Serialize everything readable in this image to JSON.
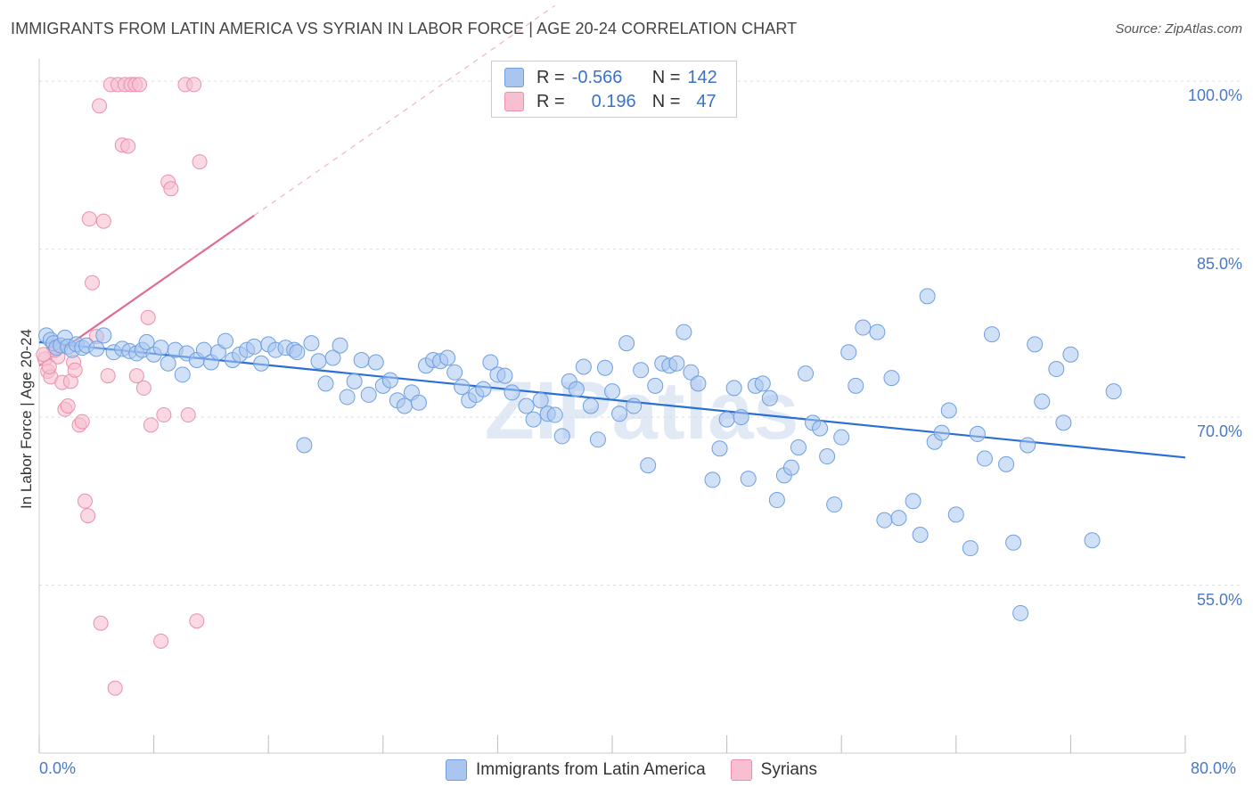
{
  "title": "IMMIGRANTS FROM LATIN AMERICA VS SYRIAN IN LABOR FORCE | AGE 20-24 CORRELATION CHART",
  "source": "Source: ZipAtlas.com",
  "watermark": "ZIPatlas",
  "colors": {
    "blue_fill": "#aac6f0",
    "blue_stroke": "#6f9fe0",
    "blue_line": "#2a6fd6",
    "pink_fill": "#f7bfd0",
    "pink_stroke": "#ec8fad",
    "pink_line": "#e06a93",
    "tick_text": "#4a78c8",
    "grid": "#dddddd"
  },
  "correlation_box": {
    "rows": [
      {
        "r_label": "R =",
        "r_value": "-0.566",
        "n_label": "N =",
        "n_value": "142"
      },
      {
        "r_label": "R =",
        "r_value": "0.196",
        "n_label": "N =",
        "n_value": "47"
      }
    ]
  },
  "chart_data": {
    "type": "scatter",
    "title": "IMMIGRANTS FROM LATIN AMERICA VS SYRIAN IN LABOR FORCE | AGE 20-24 CORRELATION CHART",
    "xlabel": "",
    "ylabel": "In Labor Force | Age 20-24",
    "xlim": [
      0,
      80
    ],
    "ylim": [
      40,
      102
    ],
    "x_tick_labels": [
      "0.0%",
      "80.0%"
    ],
    "y_tick_labels": [
      "100.0%",
      "85.0%",
      "70.0%",
      "55.0%"
    ],
    "y_ticks": [
      100,
      85,
      70,
      55
    ],
    "legend_position": "bottom-center",
    "grid": true,
    "series": [
      {
        "name": "Immigrants from Latin America",
        "color": "#aac6f0",
        "trend": {
          "x": [
            0,
            80
          ],
          "y": [
            76.7,
            66.4
          ]
        },
        "points": [
          [
            0.5,
            77.3
          ],
          [
            0.8,
            76.9
          ],
          [
            1.0,
            76.6
          ],
          [
            1.2,
            76.2
          ],
          [
            1.5,
            76.4
          ],
          [
            1.8,
            77.1
          ],
          [
            2.0,
            76.3
          ],
          [
            2.3,
            76.0
          ],
          [
            2.6,
            76.5
          ],
          [
            3.0,
            76.2
          ],
          [
            3.3,
            76.4
          ],
          [
            4.0,
            76.1
          ],
          [
            4.5,
            77.3
          ],
          [
            5.2,
            75.8
          ],
          [
            5.8,
            76.1
          ],
          [
            6.3,
            75.9
          ],
          [
            6.8,
            75.7
          ],
          [
            7.2,
            76.0
          ],
          [
            7.5,
            76.7
          ],
          [
            8.0,
            75.6
          ],
          [
            8.5,
            76.2
          ],
          [
            9.0,
            74.8
          ],
          [
            9.5,
            76.0
          ],
          [
            10.0,
            73.8
          ],
          [
            10.3,
            75.7
          ],
          [
            11.0,
            75.1
          ],
          [
            11.5,
            76.0
          ],
          [
            12.0,
            74.9
          ],
          [
            12.5,
            75.8
          ],
          [
            13.0,
            76.8
          ],
          [
            13.5,
            75.1
          ],
          [
            14.0,
            75.6
          ],
          [
            14.5,
            76.0
          ],
          [
            15.0,
            76.3
          ],
          [
            15.5,
            74.8
          ],
          [
            16.0,
            76.5
          ],
          [
            16.5,
            76.0
          ],
          [
            17.2,
            76.2
          ],
          [
            17.8,
            76.0
          ],
          [
            18.0,
            75.8
          ],
          [
            18.5,
            67.5
          ],
          [
            19.0,
            76.6
          ],
          [
            19.5,
            75.0
          ],
          [
            20.0,
            73.0
          ],
          [
            20.5,
            75.3
          ],
          [
            21.0,
            76.4
          ],
          [
            21.5,
            71.8
          ],
          [
            22.0,
            73.2
          ],
          [
            22.5,
            75.1
          ],
          [
            23.0,
            72.0
          ],
          [
            23.5,
            74.9
          ],
          [
            24.0,
            72.8
          ],
          [
            24.5,
            73.3
          ],
          [
            25.0,
            71.5
          ],
          [
            25.5,
            71.0
          ],
          [
            26.0,
            72.2
          ],
          [
            26.5,
            71.3
          ],
          [
            27.0,
            74.6
          ],
          [
            27.5,
            75.1
          ],
          [
            28.0,
            75.0
          ],
          [
            28.5,
            75.3
          ],
          [
            29.0,
            74.0
          ],
          [
            29.5,
            72.7
          ],
          [
            30.0,
            71.5
          ],
          [
            30.5,
            72.0
          ],
          [
            31.0,
            72.5
          ],
          [
            31.5,
            74.9
          ],
          [
            32.0,
            73.8
          ],
          [
            32.5,
            73.7
          ],
          [
            33.0,
            72.2
          ],
          [
            34.0,
            71.0
          ],
          [
            34.5,
            69.8
          ],
          [
            35.0,
            71.5
          ],
          [
            35.5,
            70.3
          ],
          [
            36.0,
            70.2
          ],
          [
            36.5,
            68.3
          ],
          [
            37.0,
            73.2
          ],
          [
            37.5,
            72.5
          ],
          [
            38.0,
            74.5
          ],
          [
            38.5,
            71.0
          ],
          [
            39.0,
            68.0
          ],
          [
            39.5,
            74.4
          ],
          [
            40.0,
            72.3
          ],
          [
            40.5,
            70.3
          ],
          [
            41.0,
            76.6
          ],
          [
            41.5,
            71.0
          ],
          [
            42.0,
            74.2
          ],
          [
            42.5,
            65.7
          ],
          [
            43.0,
            72.8
          ],
          [
            43.5,
            74.8
          ],
          [
            44.0,
            74.6
          ],
          [
            44.5,
            74.8
          ],
          [
            45.0,
            77.6
          ],
          [
            45.5,
            74.0
          ],
          [
            46.0,
            73.0
          ],
          [
            47.0,
            64.4
          ],
          [
            47.5,
            67.2
          ],
          [
            48.0,
            69.8
          ],
          [
            48.5,
            72.6
          ],
          [
            49.0,
            70.0
          ],
          [
            49.5,
            64.5
          ],
          [
            50.0,
            72.8
          ],
          [
            50.5,
            73.0
          ],
          [
            51.0,
            71.7
          ],
          [
            51.5,
            62.6
          ],
          [
            52.0,
            64.8
          ],
          [
            52.5,
            65.5
          ],
          [
            53.0,
            67.3
          ],
          [
            53.5,
            73.9
          ],
          [
            54.0,
            69.5
          ],
          [
            54.5,
            69.0
          ],
          [
            55.0,
            66.5
          ],
          [
            55.5,
            62.2
          ],
          [
            56.0,
            68.2
          ],
          [
            56.5,
            75.8
          ],
          [
            57.0,
            72.8
          ],
          [
            57.5,
            78.0
          ],
          [
            58.5,
            77.6
          ],
          [
            59.0,
            60.8
          ],
          [
            59.5,
            73.5
          ],
          [
            60.0,
            61.0
          ],
          [
            61.0,
            62.5
          ],
          [
            61.5,
            59.5
          ],
          [
            62.0,
            80.8
          ],
          [
            62.5,
            67.8
          ],
          [
            63.0,
            68.6
          ],
          [
            63.5,
            70.6
          ],
          [
            64.0,
            61.3
          ],
          [
            65.0,
            58.3
          ],
          [
            65.5,
            68.5
          ],
          [
            66.0,
            66.3
          ],
          [
            66.5,
            77.4
          ],
          [
            67.5,
            65.8
          ],
          [
            68.0,
            58.8
          ],
          [
            68.5,
            52.5
          ],
          [
            69.0,
            67.5
          ],
          [
            69.5,
            76.5
          ],
          [
            70.0,
            71.4
          ],
          [
            71.0,
            74.3
          ],
          [
            71.5,
            69.5
          ],
          [
            72.0,
            75.6
          ],
          [
            73.5,
            59.0
          ],
          [
            75.0,
            72.3
          ]
        ]
      },
      {
        "name": "Syrians",
        "color": "#f7bfd0",
        "trend": {
          "x": [
            0,
            15
          ],
          "y": [
            74.6,
            88.0
          ]
        },
        "points": [
          [
            0.4,
            75.2
          ],
          [
            0.6,
            74.1
          ],
          [
            0.8,
            73.6
          ],
          [
            1.0,
            76.3
          ],
          [
            1.3,
            75.4
          ],
          [
            1.6,
            73.1
          ],
          [
            1.8,
            70.7
          ],
          [
            2.0,
            71.0
          ],
          [
            2.2,
            73.2
          ],
          [
            2.4,
            74.9
          ],
          [
            2.5,
            74.2
          ],
          [
            2.8,
            69.3
          ],
          [
            3.0,
            69.6
          ],
          [
            3.2,
            62.5
          ],
          [
            3.4,
            61.2
          ],
          [
            3.5,
            87.7
          ],
          [
            3.7,
            82.0
          ],
          [
            4.0,
            77.2
          ],
          [
            4.2,
            97.8
          ],
          [
            4.3,
            51.6
          ],
          [
            4.5,
            87.5
          ],
          [
            4.8,
            73.7
          ],
          [
            5.0,
            99.7
          ],
          [
            5.3,
            45.8
          ],
          [
            5.5,
            99.7
          ],
          [
            5.8,
            94.3
          ],
          [
            6.0,
            99.7
          ],
          [
            6.2,
            94.2
          ],
          [
            6.4,
            99.7
          ],
          [
            6.7,
            99.7
          ],
          [
            6.8,
            73.7
          ],
          [
            7.0,
            99.7
          ],
          [
            7.3,
            72.6
          ],
          [
            7.6,
            78.9
          ],
          [
            7.8,
            69.3
          ],
          [
            8.5,
            50.0
          ],
          [
            8.7,
            70.2
          ],
          [
            9.0,
            91.0
          ],
          [
            9.2,
            90.4
          ],
          [
            10.2,
            99.7
          ],
          [
            10.4,
            70.2
          ],
          [
            10.8,
            99.7
          ],
          [
            11.0,
            51.8
          ],
          [
            11.2,
            92.8
          ],
          [
            0.7,
            74.5
          ],
          [
            1.1,
            76.0
          ],
          [
            0.3,
            75.6
          ]
        ]
      }
    ]
  }
}
